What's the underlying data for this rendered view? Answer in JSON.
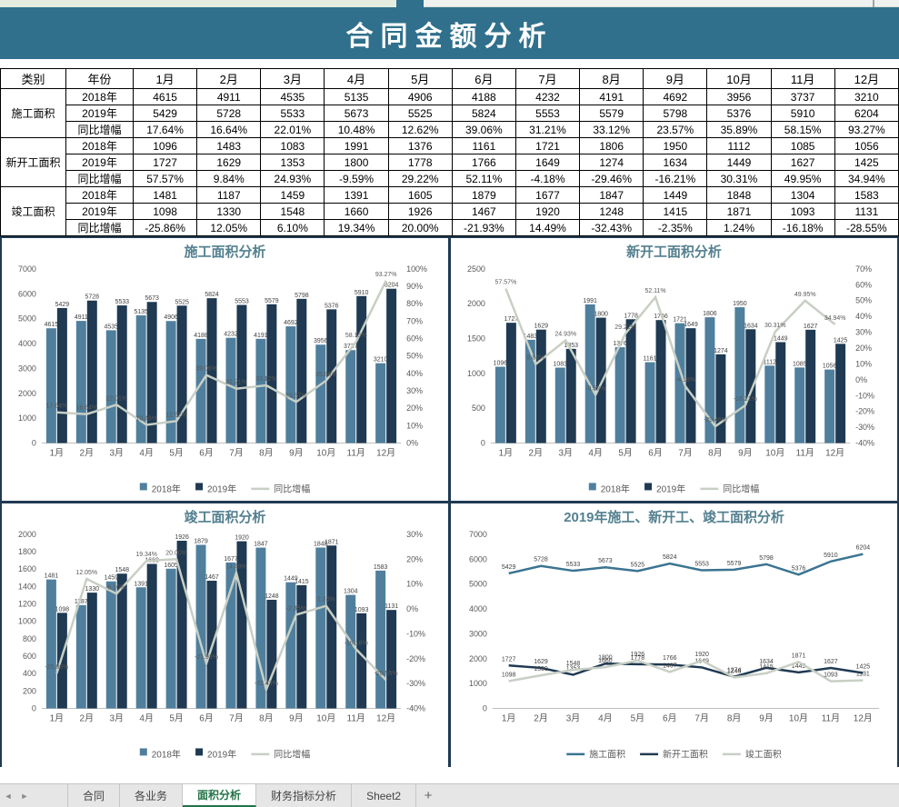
{
  "title": "合同金额分析",
  "colors": {
    "banner_bg": "#30708C",
    "bar_2018": "#4F7F9D",
    "bar_2019": "#1F3A52",
    "line_growth": "#C8CFC4",
    "line_2019_construction": "#3A7491",
    "chart_title": "#54808F",
    "chart_border": "#1F3A52",
    "axis_text": "#595959",
    "tab_active_green": "#217346"
  },
  "table": {
    "header": [
      "类别",
      "年份",
      "1月",
      "2月",
      "3月",
      "4月",
      "5月",
      "6月",
      "7月",
      "8月",
      "9月",
      "10月",
      "11月",
      "12月"
    ],
    "groups": [
      {
        "name": "施工面积",
        "rows": [
          {
            "label": "2018年",
            "values": [
              "4615",
              "4911",
              "4535",
              "5135",
              "4906",
              "4188",
              "4232",
              "4191",
              "4692",
              "3956",
              "3737",
              "3210"
            ]
          },
          {
            "label": "2019年",
            "values": [
              "5429",
              "5728",
              "5533",
              "5673",
              "5525",
              "5824",
              "5553",
              "5579",
              "5798",
              "5376",
              "5910",
              "6204"
            ]
          },
          {
            "label": "同比增幅",
            "values": [
              "17.64%",
              "16.64%",
              "22.01%",
              "10.48%",
              "12.62%",
              "39.06%",
              "31.21%",
              "33.12%",
              "23.57%",
              "35.89%",
              "58.15%",
              "93.27%"
            ]
          }
        ]
      },
      {
        "name": "新开工面积",
        "rows": [
          {
            "label": "2018年",
            "values": [
              "1096",
              "1483",
              "1083",
              "1991",
              "1376",
              "1161",
              "1721",
              "1806",
              "1950",
              "1112",
              "1085",
              "1056"
            ]
          },
          {
            "label": "2019年",
            "values": [
              "1727",
              "1629",
              "1353",
              "1800",
              "1778",
              "1766",
              "1649",
              "1274",
              "1634",
              "1449",
              "1627",
              "1425"
            ]
          },
          {
            "label": "同比增幅",
            "values": [
              "57.57%",
              "9.84%",
              "24.93%",
              "-9.59%",
              "29.22%",
              "52.11%",
              "-4.18%",
              "-29.46%",
              "-16.21%",
              "30.31%",
              "49.95%",
              "34.94%"
            ]
          }
        ]
      },
      {
        "name": "竣工面积",
        "rows": [
          {
            "label": "2018年",
            "values": [
              "1481",
              "1187",
              "1459",
              "1391",
              "1605",
              "1879",
              "1677",
              "1847",
              "1449",
              "1848",
              "1304",
              "1583"
            ]
          },
          {
            "label": "2019年",
            "values": [
              "1098",
              "1330",
              "1548",
              "1660",
              "1926",
              "1467",
              "1920",
              "1248",
              "1415",
              "1871",
              "1093",
              "1131"
            ]
          },
          {
            "label": "同比增幅",
            "values": [
              "-25.86%",
              "12.05%",
              "6.10%",
              "19.34%",
              "20.00%",
              "-21.93%",
              "14.49%",
              "-32.43%",
              "-2.35%",
              "1.24%",
              "-16.18%",
              "-28.55%"
            ]
          }
        ]
      }
    ]
  },
  "chart_data": [
    {
      "type": "bar-line-combo",
      "title": "施工面积分析",
      "categories": [
        "1月",
        "2月",
        "3月",
        "4月",
        "5月",
        "6月",
        "7月",
        "8月",
        "9月",
        "10月",
        "11月",
        "12月"
      ],
      "series": [
        {
          "name": "2018年",
          "type": "bar",
          "color": "#4F7F9D",
          "values": [
            4615,
            4911,
            4535,
            5135,
            4906,
            4188,
            4232,
            4191,
            4692,
            3956,
            3737,
            3210
          ]
        },
        {
          "name": "2019年",
          "type": "bar",
          "color": "#1F3A52",
          "values": [
            5429,
            5728,
            5533,
            5673,
            5525,
            5824,
            5553,
            5579,
            5798,
            5376,
            5910,
            6204
          ]
        },
        {
          "name": "同比增幅",
          "type": "line",
          "axis": "right",
          "color": "#C8CFC4",
          "values": [
            17.64,
            16.64,
            22.01,
            10.48,
            12.62,
            39.06,
            31.21,
            33.12,
            23.57,
            35.89,
            58.15,
            93.27
          ]
        }
      ],
      "left_axis": {
        "min": 0,
        "max": 7000,
        "step": 1000
      },
      "right_axis": {
        "min": 0,
        "max": 100,
        "step": 10,
        "suffix": "%"
      },
      "legend_position": "bottom",
      "grid": false
    },
    {
      "type": "bar-line-combo",
      "title": "新开工面积分析",
      "categories": [
        "1月",
        "2月",
        "3月",
        "4月",
        "5月",
        "6月",
        "7月",
        "8月",
        "9月",
        "10月",
        "11月",
        "12月"
      ],
      "series": [
        {
          "name": "2018年",
          "type": "bar",
          "color": "#4F7F9D",
          "values": [
            1096,
            1483,
            1083,
            1991,
            1376,
            1161,
            1721,
            1806,
            1950,
            1112,
            1085,
            1056
          ]
        },
        {
          "name": "2019年",
          "type": "bar",
          "color": "#1F3A52",
          "values": [
            1727,
            1629,
            1353,
            1800,
            1778,
            1766,
            1649,
            1274,
            1634,
            1449,
            1627,
            1425
          ]
        },
        {
          "name": "同比增幅",
          "type": "line",
          "axis": "right",
          "color": "#C8CFC4",
          "values": [
            57.57,
            9.84,
            24.93,
            -9.59,
            29.22,
            52.11,
            -4.18,
            -29.46,
            -16.21,
            30.31,
            49.95,
            34.94
          ]
        }
      ],
      "left_axis": {
        "min": 0,
        "max": 2500,
        "step": 500
      },
      "right_axis": {
        "min": -40,
        "max": 70,
        "step": 10,
        "suffix": "%"
      },
      "legend_position": "bottom",
      "grid": false
    },
    {
      "type": "bar-line-combo",
      "title": "竣工面积分析",
      "categories": [
        "1月",
        "2月",
        "3月",
        "4月",
        "5月",
        "6月",
        "7月",
        "8月",
        "9月",
        "10月",
        "11月",
        "12月"
      ],
      "series": [
        {
          "name": "2018年",
          "type": "bar",
          "color": "#4F7F9D",
          "values": [
            1481,
            1187,
            1459,
            1391,
            1605,
            1879,
            1677,
            1847,
            1449,
            1848,
            1304,
            1583
          ]
        },
        {
          "name": "2019年",
          "type": "bar",
          "color": "#1F3A52",
          "values": [
            1098,
            1330,
            1548,
            1660,
            1926,
            1467,
            1920,
            1248,
            1415,
            1871,
            1093,
            1131
          ]
        },
        {
          "name": "同比增幅",
          "type": "line",
          "axis": "right",
          "color": "#C8CFC4",
          "values": [
            -25.86,
            12.05,
            6.1,
            19.34,
            20.0,
            -21.93,
            14.49,
            -32.43,
            -2.35,
            1.24,
            -16.18,
            -28.55
          ]
        }
      ],
      "left_axis": {
        "min": 0,
        "max": 2000,
        "step": 200
      },
      "right_axis": {
        "min": -40,
        "max": 30,
        "step": 10,
        "suffix": "%"
      },
      "legend_position": "bottom",
      "grid": false
    },
    {
      "type": "line",
      "title": "2019年施工、新开工、竣工面积分析",
      "categories": [
        "1月",
        "2月",
        "3月",
        "4月",
        "5月",
        "6月",
        "7月",
        "8月",
        "9月",
        "10月",
        "11月",
        "12月"
      ],
      "series": [
        {
          "name": "施工面积",
          "type": "line",
          "color": "#3A7491",
          "values": [
            5429,
            5728,
            5533,
            5673,
            5525,
            5824,
            5553,
            5579,
            5798,
            5376,
            5910,
            6204
          ]
        },
        {
          "name": "新开工面积",
          "type": "line",
          "color": "#1F3A52",
          "values": [
            1727,
            1629,
            1353,
            1800,
            1778,
            1766,
            1649,
            1274,
            1634,
            1449,
            1627,
            1425
          ]
        },
        {
          "name": "竣工面积",
          "type": "line",
          "color": "#C8CFC4",
          "values": [
            1098,
            1330,
            1548,
            1660,
            1926,
            1467,
            1920,
            1248,
            1415,
            1871,
            1093,
            1131
          ]
        }
      ],
      "left_axis": {
        "min": 0,
        "max": 7000,
        "step": 1000
      },
      "legend_position": "bottom",
      "grid": false
    }
  ],
  "sheet_bar": {
    "nav_left_glyph": "◄",
    "nav_right_glyph": "►",
    "tabs": [
      {
        "label": "合同",
        "active": false
      },
      {
        "label": "各业务",
        "active": false
      },
      {
        "label": "面积分析",
        "active": true
      },
      {
        "label": "财务指标分析",
        "active": false
      },
      {
        "label": "Sheet2",
        "active": false
      }
    ],
    "add_glyph": "+"
  }
}
